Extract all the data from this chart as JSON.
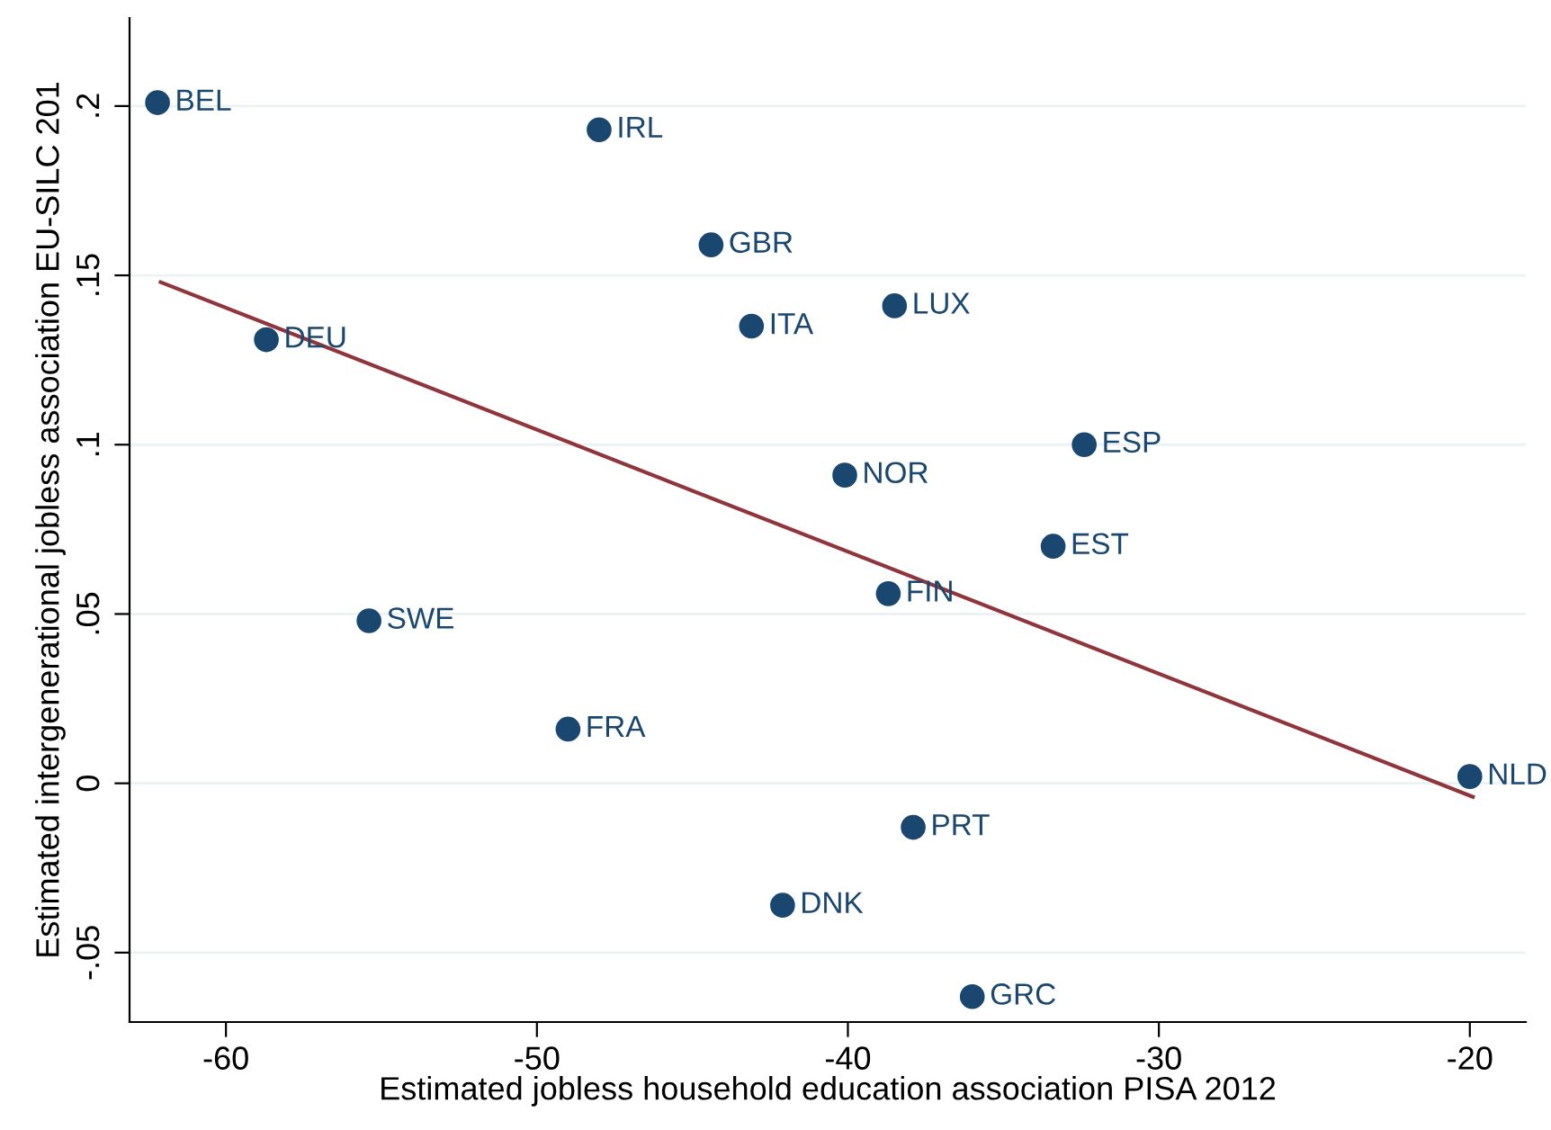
{
  "chart_data": {
    "type": "scatter",
    "xlabel": "Estimated jobless household education association PISA 2012",
    "ylabel": "Estimated intergenerational jobless association EU-SILC 201",
    "series": [
      {
        "marker": "circle",
        "color": "#1a476f",
        "x": [
          -62.2,
          -48.0,
          -44.4,
          -38.5,
          -43.1,
          -58.7,
          -32.4,
          -40.1,
          -33.4,
          -38.7,
          -55.4,
          -49.0,
          -20.0,
          -37.9,
          -42.1,
          -36.0
        ],
        "values": [
          0.201,
          0.193,
          0.159,
          0.141,
          0.135,
          0.131,
          0.1,
          0.091,
          0.07,
          0.056,
          0.048,
          0.016,
          0.002,
          -0.013,
          -0.036,
          -0.063
        ]
      },
      {
        "type": "line",
        "marker": "none",
        "color": "#90353b",
        "x": [
          -62.1,
          -19.9
        ],
        "values": [
          0.148,
          -0.004
        ]
      }
    ],
    "annotations": [
      {
        "text": "BEL",
        "x": -62.2,
        "y": 0.201
      },
      {
        "text": "IRL",
        "x": -48.0,
        "y": 0.193
      },
      {
        "text": "GBR",
        "x": -44.4,
        "y": 0.159
      },
      {
        "text": "LUX",
        "x": -38.5,
        "y": 0.141
      },
      {
        "text": "ITA",
        "x": -43.1,
        "y": 0.135
      },
      {
        "text": "DEU",
        "x": -58.7,
        "y": 0.131
      },
      {
        "text": "ESP",
        "x": -32.4,
        "y": 0.1
      },
      {
        "text": "NOR",
        "x": -40.1,
        "y": 0.091
      },
      {
        "text": "EST",
        "x": -33.4,
        "y": 0.07
      },
      {
        "text": "FIN",
        "x": -38.7,
        "y": 0.056
      },
      {
        "text": "SWE",
        "x": -55.4,
        "y": 0.048
      },
      {
        "text": "FRA",
        "x": -49.0,
        "y": 0.016
      },
      {
        "text": "NLD",
        "x": -20.0,
        "y": 0.002
      },
      {
        "text": "PRT",
        "x": -37.9,
        "y": -0.013
      },
      {
        "text": "DNK",
        "x": -42.1,
        "y": -0.036
      },
      {
        "text": "GRC",
        "x": -36.0,
        "y": -0.063
      }
    ],
    "xlim": [
      -63.1,
      -18.2
    ],
    "xticks": [
      -60,
      -50,
      -40,
      -30,
      -20
    ],
    "ylim": [
      -0.0705,
      0.226
    ],
    "yticks": [
      {
        "value": -0.05,
        "label": "-.05"
      },
      0,
      {
        "value": 0.05,
        "label": ".05"
      },
      {
        "value": 0.1,
        "label": ".1"
      },
      {
        "value": 0.15,
        "label": ".15"
      },
      {
        "value": 0.2,
        "label": ".2"
      }
    ],
    "grid": "y",
    "legend": false
  }
}
